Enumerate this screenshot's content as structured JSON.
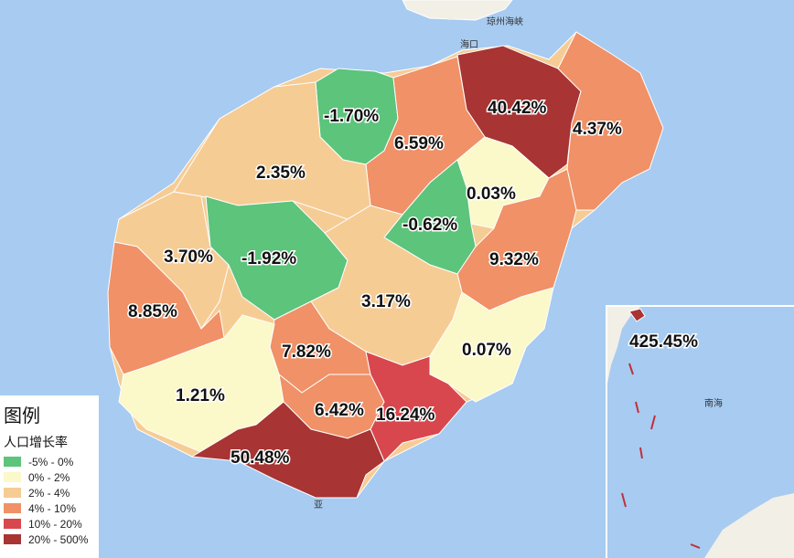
{
  "places": {
    "haikou": "海口",
    "strait": "琼州海峡",
    "south_sea": "南海",
    "sanya": "亚"
  },
  "legend": {
    "title": "图例",
    "subtitle": "人口增长率",
    "items": [
      {
        "label": "-5% - 0%",
        "color": "#5cc47b"
      },
      {
        "label": "0% - 2%",
        "color": "#fbf8c9"
      },
      {
        "label": "2% - 4%",
        "color": "#f6cc95"
      },
      {
        "label": "4% - 10%",
        "color": "#f09167"
      },
      {
        "label": "10% - 20%",
        "color": "#d8474d"
      },
      {
        "label": "20% - 500%",
        "color": "#a83434"
      }
    ]
  },
  "regions": [
    {
      "id": "haikou-core",
      "value": "40.42%",
      "color": "#a83434"
    },
    {
      "id": "wenchang",
      "value": "4.37%",
      "color": "#f09167"
    },
    {
      "id": "chengmai",
      "value": "-1.70%",
      "color": "#5cc47b"
    },
    {
      "id": "dingan",
      "value": "6.59%",
      "color": "#f09167"
    },
    {
      "id": "danzhou",
      "value": "2.35%",
      "color": "#f6cc95"
    },
    {
      "id": "tunchang",
      "value": "0.03%",
      "color": "#fbf8c9"
    },
    {
      "id": "qionghai-north",
      "value": "-0.62%",
      "color": "#5cc47b"
    },
    {
      "id": "qionghai",
      "value": "9.32%",
      "color": "#f09167"
    },
    {
      "id": "lingao-west",
      "value": "3.70%",
      "color": "#f6cc95"
    },
    {
      "id": "baisha",
      "value": "-1.92%",
      "color": "#5cc47b"
    },
    {
      "id": "dongfang",
      "value": "8.85%",
      "color": "#f09167"
    },
    {
      "id": "qiongzhong",
      "value": "3.17%",
      "color": "#f6cc95"
    },
    {
      "id": "wanning",
      "value": "0.07%",
      "color": "#fbf8c9"
    },
    {
      "id": "wuzhishan",
      "value": "7.82%",
      "color": "#f09167"
    },
    {
      "id": "ledong",
      "value": "1.21%",
      "color": "#fbf8c9"
    },
    {
      "id": "baoting",
      "value": "6.42%",
      "color": "#f09167"
    },
    {
      "id": "lingshui",
      "value": "16.24%",
      "color": "#d8474d"
    },
    {
      "id": "sanya",
      "value": "50.48%",
      "color": "#a83434"
    },
    {
      "id": "sansha",
      "value": "425.45%",
      "color": "#a83434"
    }
  ]
}
